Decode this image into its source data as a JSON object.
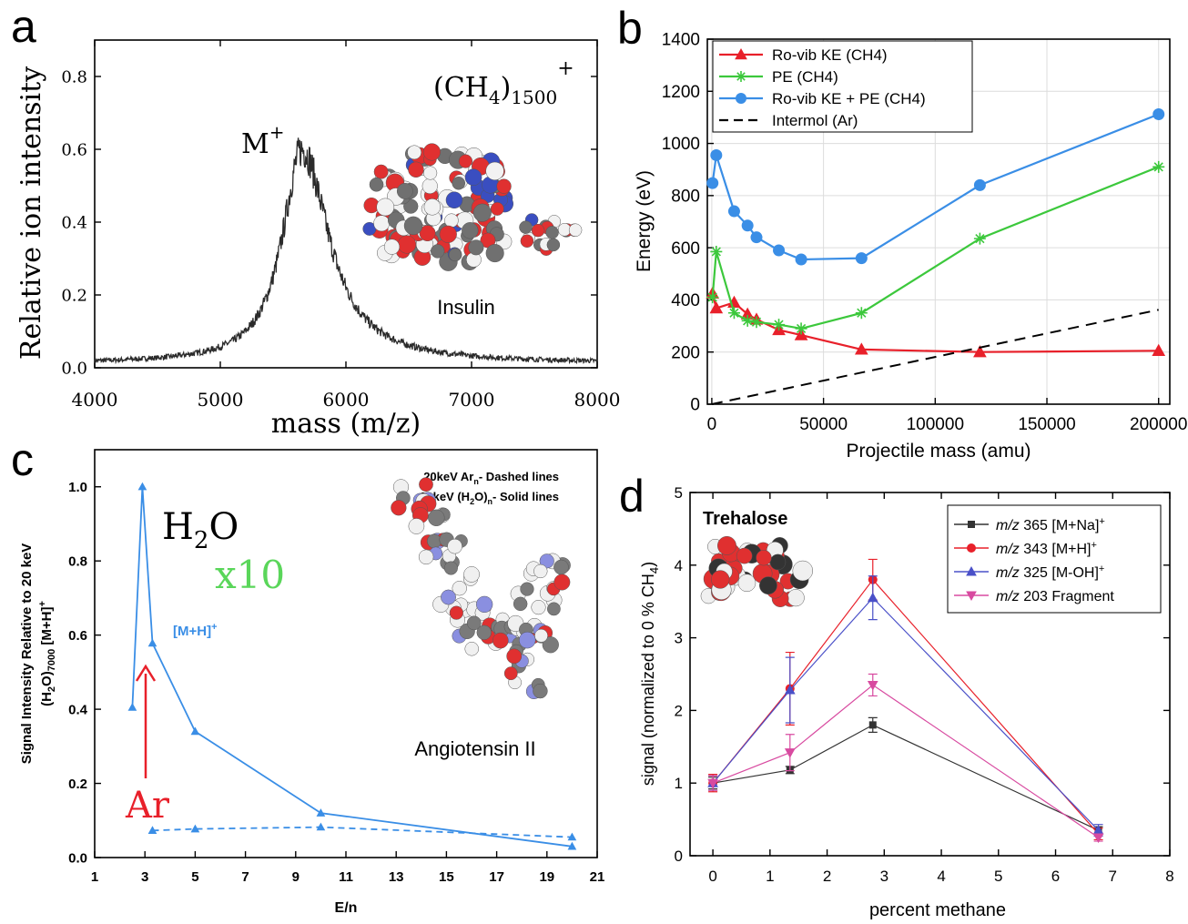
{
  "chart_data": [
    {
      "panel": "a",
      "type": "line",
      "xlabel": "mass (m/z)",
      "ylabel": "Relative ion intensity",
      "xlim": [
        4000,
        8000
      ],
      "ylim": [
        0,
        0.9
      ],
      "xticks": [
        4000,
        5000,
        6000,
        7000,
        8000
      ],
      "yticks": [
        0.0,
        0.2,
        0.4,
        0.6,
        0.8
      ],
      "ytick_labels": [
        "0.0",
        "0.2",
        "0.4",
        "0.6",
        "0.8"
      ],
      "annotations": {
        "peak": "M",
        "peak_sup": "+",
        "cluster_main": "(CH",
        "cluster_sub1": "4",
        "cluster_rp": ")",
        "cluster_sub2": "1500",
        "cluster_sup": "+",
        "molecule": "Insulin"
      },
      "series": [
        {
          "color": "#2b2b2b",
          "peak_x": 5650,
          "peak_y": 0.6,
          "baseline": 0.012
        }
      ]
    },
    {
      "panel": "b",
      "type": "line",
      "xlabel": "Projectile mass (amu)",
      "ylabel": "Energy (eV)",
      "xlim": [
        -2000,
        205000
      ],
      "ylim": [
        0,
        1400
      ],
      "xticks": [
        0,
        50000,
        100000,
        150000,
        200000
      ],
      "yticks": [
        0,
        200,
        400,
        600,
        800,
        1000,
        1200,
        1400
      ],
      "grid": true,
      "legend_position": "top-left",
      "series": [
        {
          "name": "Ro-vib KE (CH4)",
          "color": "#e8202a",
          "marker": "triangle",
          "x": [
            320,
            2000,
            10000,
            16000,
            20000,
            30000,
            40000,
            67000,
            120000,
            200000
          ],
          "y": [
            425,
            368,
            390,
            345,
            325,
            285,
            265,
            210,
            200,
            205
          ]
        },
        {
          "name": "PE (CH4)",
          "color": "#3cc83c",
          "marker": "star",
          "x": [
            320,
            2000,
            10000,
            16000,
            20000,
            30000,
            40000,
            67000,
            120000,
            200000
          ],
          "y": [
            410,
            585,
            350,
            320,
            315,
            305,
            290,
            350,
            635,
            910
          ]
        },
        {
          "name": "Ro-vib KE + PE (CH4)",
          "color": "#3a8ee6",
          "marker": "circle",
          "x": [
            320,
            2000,
            10000,
            16000,
            20000,
            30000,
            40000,
            67000,
            120000,
            200000
          ],
          "y": [
            848,
            955,
            740,
            685,
            640,
            590,
            555,
            560,
            840,
            1112
          ]
        },
        {
          "name": "Intermol (Ar)",
          "color": "#000000",
          "marker": "none",
          "dashed": true,
          "x": [
            0,
            200000
          ],
          "y": [
            0,
            362
          ]
        }
      ]
    },
    {
      "panel": "c",
      "type": "line",
      "xlabel": "E/n",
      "ylabel": "Signal Intensity Relative to 20 keV",
      "ylabel2_main": "(H",
      "ylabel2_sub1": "2",
      "ylabel2_mid": "O)",
      "ylabel2_sub2": "7000",
      "ylabel2_end": " [M+H]",
      "ylabel2_sup": "+",
      "xlim": [
        1,
        21
      ],
      "ylim": [
        0,
        1.1
      ],
      "xticks": [
        1,
        3,
        5,
        7,
        9,
        11,
        13,
        15,
        17,
        19,
        21
      ],
      "yticks": [
        0.0,
        0.2,
        0.4,
        0.6,
        0.8,
        1.0
      ],
      "ytick_labels": [
        "0.0",
        "0.2",
        "0.4",
        "0.6",
        "0.8",
        "1.0"
      ],
      "legend": {
        "ar_main": "20keV Ar",
        "ar_sub": "n",
        "ar_rest": "- Dashed lines",
        "w_main": "20keV (H",
        "w_sub1": "2",
        "w_mid": "O)",
        "w_sub2": "n",
        "w_rest": "- Solid lines"
      },
      "annotations": {
        "water_main": "H",
        "water_sub": "2",
        "water_end": "O",
        "factor": "x10",
        "ion": "[M+H]",
        "ion_sup": "+",
        "argon": "Ar",
        "molecule": "Angiotensin II"
      },
      "series": [
        {
          "name": "(H2O)n",
          "color": "#3a8ee6",
          "dashed": false,
          "x": [
            2.5,
            2.9,
            3.3,
            5,
            10,
            20
          ],
          "y": [
            0.405,
            1.0,
            0.578,
            0.34,
            0.12,
            0.03
          ]
        },
        {
          "name": "Arn",
          "color": "#3a8ee6",
          "dashed": true,
          "x": [
            3.3,
            5,
            10,
            20
          ],
          "y": [
            0.073,
            0.077,
            0.082,
            0.055
          ]
        }
      ]
    },
    {
      "panel": "d",
      "type": "line",
      "xlabel": "percent methane",
      "ylabel_main": "signal (normalized to 0 % CH",
      "ylabel_sub": "4",
      "ylabel_end": ")",
      "xlim": [
        -0.4,
        8
      ],
      "ylim": [
        0,
        5
      ],
      "xticks": [
        0,
        1,
        2,
        3,
        4,
        5,
        6,
        7,
        8
      ],
      "yticks": [
        0,
        1,
        2,
        3,
        4,
        5
      ],
      "legend_position": "top-right",
      "annotations": {
        "molecule": "Trehalose"
      },
      "series": [
        {
          "name_italic": "m/z",
          "name_rest": " 365 [M+Na]",
          "name_sup": "+",
          "color": "#333333",
          "marker": "square",
          "x": [
            0,
            1.35,
            2.8,
            6.75
          ],
          "y": [
            1.0,
            1.18,
            1.8,
            0.35
          ],
          "err": [
            0.08,
            0.05,
            0.1,
            0.05
          ]
        },
        {
          "name_italic": "m/z",
          "name_rest": " 343 [M+H]",
          "name_sup": "+",
          "color": "#e8202a",
          "marker": "circle",
          "x": [
            0,
            1.35,
            2.8,
            6.75
          ],
          "y": [
            1.0,
            2.3,
            3.8,
            0.3
          ],
          "err": [
            0.12,
            0.5,
            0.28,
            0.08
          ]
        },
        {
          "name_italic": "m/z",
          "name_rest": " 325 [M-OH]",
          "name_sup": "+",
          "color": "#4a50c8",
          "marker": "triangle",
          "x": [
            0,
            1.35,
            2.8,
            6.75
          ],
          "y": [
            1.0,
            2.28,
            3.55,
            0.35
          ],
          "err": [
            0.1,
            0.45,
            0.3,
            0.08
          ]
        },
        {
          "name_italic": "m/z",
          "name_rest": " 203 Fragment",
          "name_sup": "",
          "color": "#d84aa0",
          "marker": "triangle-down",
          "x": [
            0,
            1.35,
            2.8,
            6.75
          ],
          "y": [
            1.0,
            1.42,
            2.35,
            0.25
          ],
          "err": [
            0.1,
            0.25,
            0.15,
            0.05
          ]
        }
      ]
    }
  ],
  "panel_labels": [
    "a",
    "b",
    "c",
    "d"
  ]
}
